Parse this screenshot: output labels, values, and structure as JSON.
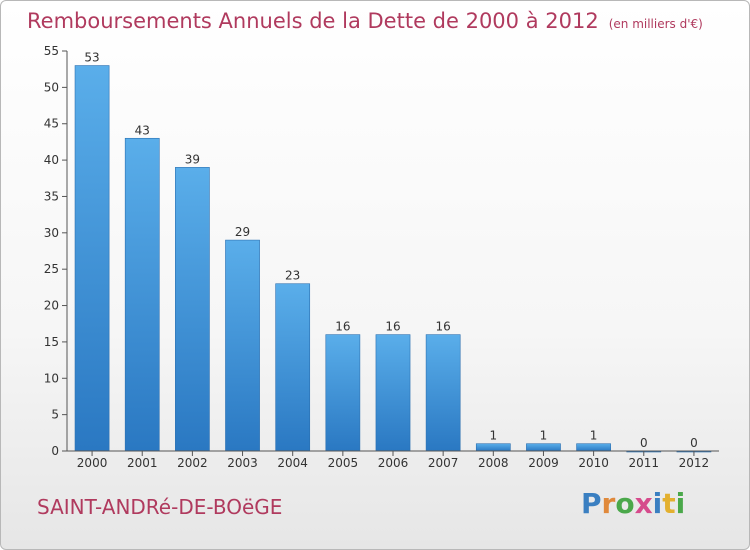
{
  "header": {
    "title": "Remboursements Annuels de la Dette de 2000 à 2012",
    "subtitle": "(en milliers d'€)"
  },
  "footer": {
    "commune": "SAINT-ANDRé-DE-BOëGE",
    "logo_letters": [
      {
        "char": "P",
        "color": "#3a7fc1"
      },
      {
        "char": "r",
        "color": "#e0893b"
      },
      {
        "char": "o",
        "color": "#4aa84a"
      },
      {
        "char": "x",
        "color": "#d64b8c"
      },
      {
        "char": "i",
        "color": "#3a7fc1"
      },
      {
        "char": "t",
        "color": "#e3b02f"
      },
      {
        "char": "i",
        "color": "#4aa84a"
      }
    ]
  },
  "chart_data": {
    "type": "bar",
    "title": "Remboursements Annuels de la Dette de 2000 à 2012",
    "subtitle": "(en milliers d'€)",
    "xlabel": "",
    "ylabel": "",
    "categories": [
      "2000",
      "2001",
      "2002",
      "2003",
      "2004",
      "2005",
      "2006",
      "2007",
      "2008",
      "2009",
      "2010",
      "2011",
      "2012"
    ],
    "values": [
      53,
      43,
      39,
      29,
      23,
      16,
      16,
      16,
      1,
      1,
      1,
      0,
      0
    ],
    "ylim": [
      0,
      55
    ],
    "yticks": [
      0,
      5,
      10,
      15,
      20,
      25,
      30,
      35,
      40,
      45,
      50,
      55
    ],
    "grid": false,
    "bar_color": "#4c9fe0",
    "bar_color_dark": "#2a78c2"
  }
}
